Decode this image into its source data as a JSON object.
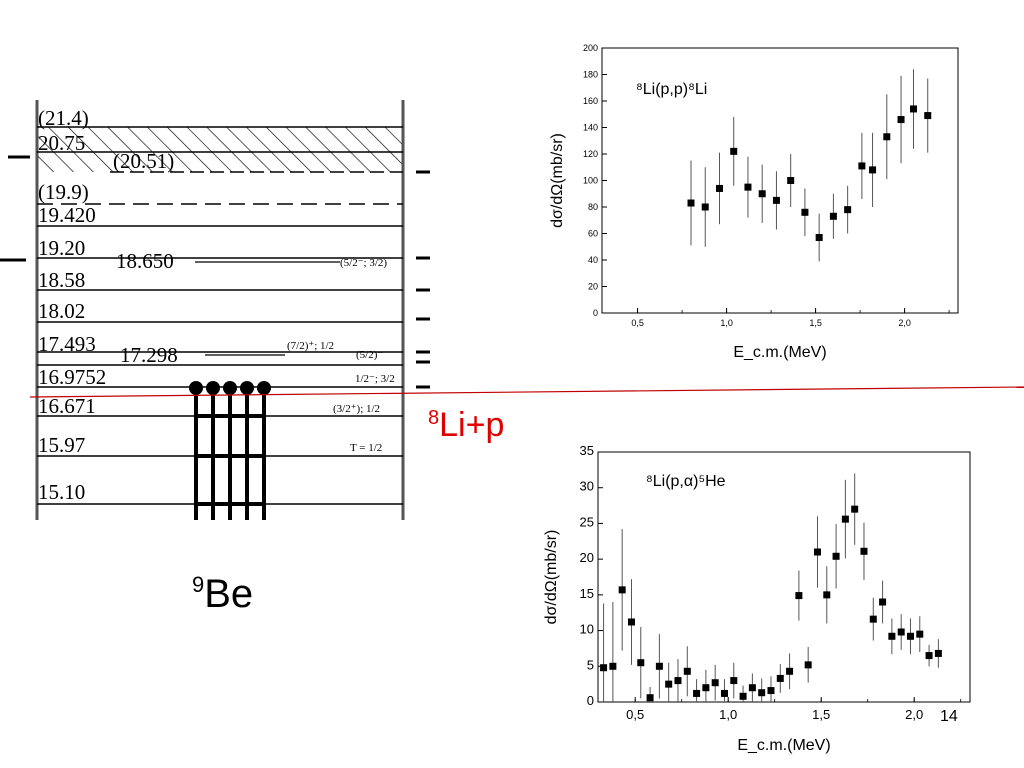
{
  "level_diagram": {
    "nucleus_label": {
      "mass": "9",
      "symbol": "Be"
    },
    "threshold_label": {
      "mass": "8",
      "symbol": "Li+p"
    },
    "accent_color": "#c00000",
    "levels": [
      {
        "energy": "(21.4)",
        "style": "hatched"
      },
      {
        "energy": "20.75",
        "style": "hatched"
      },
      {
        "energy": "(20.51)",
        "style": "hatched"
      },
      {
        "energy": "(19.9)",
        "style": "dashed"
      },
      {
        "energy": "19.420",
        "style": "solid"
      },
      {
        "energy": "19.20",
        "style": "solid"
      },
      {
        "energy": "18.650",
        "style": "solid"
      },
      {
        "energy": "18.58",
        "style": "solid"
      },
      {
        "energy": "18.02",
        "style": "solid"
      },
      {
        "energy": "17.493",
        "style": "solid"
      },
      {
        "energy": "17.298",
        "style": "solid"
      },
      {
        "energy": "16.9752",
        "style": "solid"
      },
      {
        "energy": "16.671",
        "style": "solid"
      },
      {
        "energy": "15.97",
        "style": "solid"
      },
      {
        "energy": "15.10",
        "style": "solid"
      }
    ],
    "spin_labels": [
      "(5/2⁻; 3/2)",
      "(7/2)⁺; 1/2",
      "(5/2)⁻",
      "1/2⁻; 3/2",
      "(3/2⁺); 1/2",
      "T = 1/2"
    ]
  },
  "chart_data": [
    {
      "type": "scatter",
      "title": "⁸Li(p,p)⁸Li",
      "xlabel": "E_c.m.(MeV)",
      "ylabel": "dσ/dΩ(mb/sr)",
      "xlim": [
        0.3,
        2.3
      ],
      "ylim": [
        0,
        200
      ],
      "xticks": [
        "0,5",
        "1,0",
        "1,5",
        "2,0"
      ],
      "xtick_values": [
        0.5,
        1.0,
        1.5,
        2.0
      ],
      "yticks": [
        0,
        20,
        40,
        60,
        80,
        100,
        120,
        140,
        160,
        180,
        200
      ],
      "grid": false,
      "points": [
        {
          "x": 0.8,
          "y": 83,
          "err": 32
        },
        {
          "x": 0.88,
          "y": 80,
          "err": 30
        },
        {
          "x": 0.96,
          "y": 94,
          "err": 27
        },
        {
          "x": 1.04,
          "y": 122,
          "err": 26
        },
        {
          "x": 1.12,
          "y": 95,
          "err": 23
        },
        {
          "x": 1.2,
          "y": 90,
          "err": 22
        },
        {
          "x": 1.28,
          "y": 85,
          "err": 22
        },
        {
          "x": 1.36,
          "y": 100,
          "err": 20
        },
        {
          "x": 1.44,
          "y": 76,
          "err": 18
        },
        {
          "x": 1.52,
          "y": 57,
          "err": 18
        },
        {
          "x": 1.6,
          "y": 73,
          "err": 17
        },
        {
          "x": 1.68,
          "y": 78,
          "err": 18
        },
        {
          "x": 1.76,
          "y": 111,
          "err": 25
        },
        {
          "x": 1.82,
          "y": 108,
          "err": 28
        },
        {
          "x": 1.9,
          "y": 133,
          "err": 32
        },
        {
          "x": 1.98,
          "y": 146,
          "err": 33
        },
        {
          "x": 2.05,
          "y": 154,
          "err": 30
        },
        {
          "x": 2.13,
          "y": 149,
          "err": 28
        }
      ]
    },
    {
      "type": "scatter",
      "title": "⁸Li(p,α)⁵He",
      "xlabel": "E_c.m.(MeV)",
      "ylabel": "dσ/dΩ(mb/sr)",
      "xlim": [
        0.3,
        2.3
      ],
      "ylim": [
        0,
        35
      ],
      "xticks": [
        "0,5",
        "1,0",
        "1,5",
        "2,0"
      ],
      "xtick_values": [
        0.5,
        1.0,
        1.5,
        2.0
      ],
      "yticks": [
        0,
        5,
        10,
        15,
        20,
        25,
        30,
        35
      ],
      "grid": false,
      "points": [
        {
          "x": 0.33,
          "y": 4.8,
          "err": 9
        },
        {
          "x": 0.38,
          "y": 5.0,
          "err": 9
        },
        {
          "x": 0.43,
          "y": 15.7,
          "err": 8.5
        },
        {
          "x": 0.48,
          "y": 11.2,
          "err": 6
        },
        {
          "x": 0.53,
          "y": 5.5,
          "err": 5
        },
        {
          "x": 0.58,
          "y": 0.6,
          "err": 1.5
        },
        {
          "x": 0.63,
          "y": 5.0,
          "err": 4.5
        },
        {
          "x": 0.68,
          "y": 2.5,
          "err": 3
        },
        {
          "x": 0.73,
          "y": 3.0,
          "err": 3
        },
        {
          "x": 0.78,
          "y": 4.3,
          "err": 3.5
        },
        {
          "x": 0.83,
          "y": 1.2,
          "err": 2
        },
        {
          "x": 0.88,
          "y": 2.0,
          "err": 2.5
        },
        {
          "x": 0.93,
          "y": 2.7,
          "err": 2.5
        },
        {
          "x": 0.98,
          "y": 1.2,
          "err": 2
        },
        {
          "x": 1.03,
          "y": 3.0,
          "err": 2.5
        },
        {
          "x": 1.08,
          "y": 0.8,
          "err": 1.5
        },
        {
          "x": 1.13,
          "y": 2.0,
          "err": 2
        },
        {
          "x": 1.18,
          "y": 1.3,
          "err": 2
        },
        {
          "x": 1.23,
          "y": 1.6,
          "err": 2
        },
        {
          "x": 1.28,
          "y": 3.3,
          "err": 2
        },
        {
          "x": 1.33,
          "y": 4.3,
          "err": 2.5
        },
        {
          "x": 1.38,
          "y": 14.9,
          "err": 3.5
        },
        {
          "x": 1.43,
          "y": 5.2,
          "err": 2.5
        },
        {
          "x": 1.48,
          "y": 21.0,
          "err": 5
        },
        {
          "x": 1.53,
          "y": 15.0,
          "err": 4
        },
        {
          "x": 1.58,
          "y": 20.4,
          "err": 4.5
        },
        {
          "x": 1.63,
          "y": 25.6,
          "err": 5.5
        },
        {
          "x": 1.68,
          "y": 27.0,
          "err": 5
        },
        {
          "x": 1.73,
          "y": 21.1,
          "err": 4
        },
        {
          "x": 1.78,
          "y": 11.6,
          "err": 3
        },
        {
          "x": 1.83,
          "y": 14.0,
          "err": 3
        },
        {
          "x": 1.88,
          "y": 9.2,
          "err": 2.5
        },
        {
          "x": 1.93,
          "y": 9.8,
          "err": 2.5
        },
        {
          "x": 1.98,
          "y": 9.2,
          "err": 2.5
        },
        {
          "x": 2.03,
          "y": 9.5,
          "err": 2.5
        },
        {
          "x": 2.08,
          "y": 6.5,
          "err": 1.5
        },
        {
          "x": 2.13,
          "y": 6.8,
          "err": 2
        }
      ]
    }
  ],
  "page_number": "14"
}
